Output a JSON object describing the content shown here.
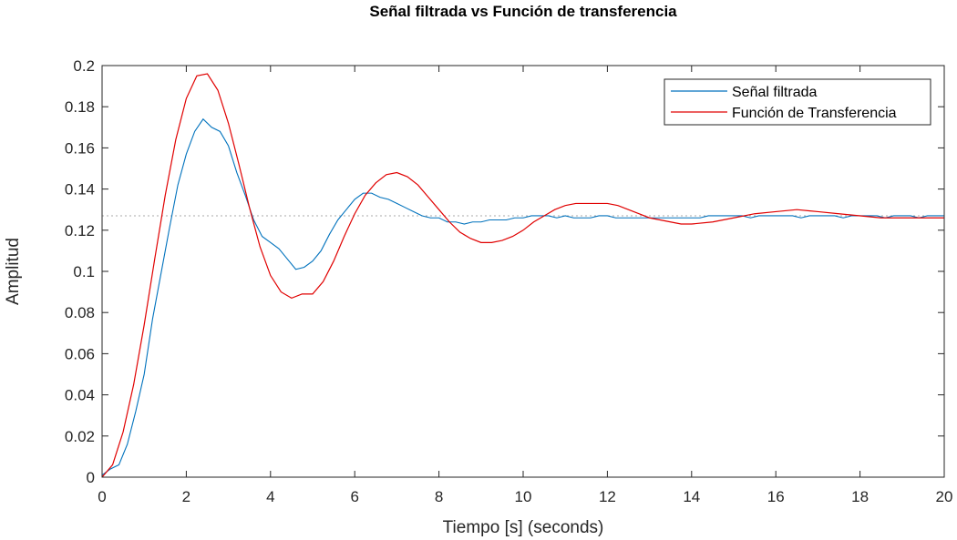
{
  "chart_data": {
    "type": "line",
    "title": "Señal filtrada vs Función de transferencia",
    "xlabel": "Tiempo [s] (seconds)",
    "ylabel": "Amplitud",
    "xlim": [
      0,
      20
    ],
    "ylim": [
      0,
      0.2
    ],
    "xticks": [
      "0",
      "2",
      "4",
      "6",
      "8",
      "10",
      "12",
      "14",
      "16",
      "18",
      "20"
    ],
    "yticks": [
      "0",
      "0.02",
      "0.04",
      "0.06",
      "0.08",
      "0.1",
      "0.12",
      "0.14",
      "0.16",
      "0.18",
      "0.2"
    ],
    "grid": false,
    "legend_position": "top-right",
    "reference_line": {
      "y": 0.127,
      "style": "dotted"
    },
    "series": [
      {
        "name": "Señal filtrada",
        "color": "#0072BD",
        "x": [
          0,
          0.2,
          0.4,
          0.6,
          0.8,
          1.0,
          1.2,
          1.4,
          1.6,
          1.8,
          2.0,
          2.2,
          2.4,
          2.6,
          2.8,
          3.0,
          3.2,
          3.4,
          3.6,
          3.8,
          4.0,
          4.2,
          4.4,
          4.6,
          4.8,
          5.0,
          5.2,
          5.4,
          5.6,
          5.8,
          6.0,
          6.2,
          6.4,
          6.6,
          6.8,
          7.0,
          7.2,
          7.4,
          7.6,
          7.8,
          8.0,
          8.2,
          8.4,
          8.6,
          8.8,
          9.0,
          9.2,
          9.4,
          9.6,
          9.8,
          10.0,
          10.2,
          10.4,
          10.6,
          10.8,
          11.0,
          11.2,
          11.4,
          11.6,
          11.8,
          12.0,
          12.2,
          12.4,
          12.6,
          12.8,
          13.0,
          13.2,
          13.4,
          13.6,
          13.8,
          14.0,
          14.2,
          14.4,
          14.6,
          14.8,
          15.0,
          15.2,
          15.4,
          15.6,
          15.8,
          16.0,
          16.2,
          16.4,
          16.6,
          16.8,
          17.0,
          17.2,
          17.4,
          17.6,
          17.8,
          18.0,
          18.2,
          18.4,
          18.6,
          18.8,
          19.0,
          19.2,
          19.4,
          19.6,
          19.8,
          20.0
        ],
        "y": [
          0.001,
          0.004,
          0.006,
          0.016,
          0.032,
          0.05,
          0.077,
          0.099,
          0.121,
          0.142,
          0.157,
          0.168,
          0.174,
          0.17,
          0.168,
          0.161,
          0.148,
          0.137,
          0.125,
          0.117,
          0.114,
          0.111,
          0.106,
          0.101,
          0.102,
          0.105,
          0.11,
          0.118,
          0.125,
          0.13,
          0.135,
          0.138,
          0.138,
          0.136,
          0.135,
          0.133,
          0.131,
          0.129,
          0.127,
          0.126,
          0.126,
          0.124,
          0.124,
          0.123,
          0.124,
          0.124,
          0.125,
          0.125,
          0.125,
          0.126,
          0.126,
          0.127,
          0.127,
          0.127,
          0.126,
          0.127,
          0.126,
          0.126,
          0.126,
          0.127,
          0.127,
          0.126,
          0.126,
          0.126,
          0.126,
          0.126,
          0.126,
          0.126,
          0.126,
          0.126,
          0.126,
          0.126,
          0.127,
          0.127,
          0.127,
          0.127,
          0.127,
          0.126,
          0.127,
          0.127,
          0.127,
          0.127,
          0.127,
          0.126,
          0.127,
          0.127,
          0.127,
          0.127,
          0.126,
          0.127,
          0.127,
          0.127,
          0.127,
          0.126,
          0.127,
          0.127,
          0.127,
          0.126,
          0.127,
          0.127,
          0.127
        ]
      },
      {
        "name": "Función de Transferencia",
        "color": "#E00000",
        "x": [
          0,
          0.25,
          0.5,
          0.75,
          1.0,
          1.25,
          1.5,
          1.75,
          2.0,
          2.25,
          2.5,
          2.75,
          3.0,
          3.25,
          3.5,
          3.75,
          4.0,
          4.25,
          4.5,
          4.75,
          5.0,
          5.25,
          5.5,
          5.75,
          6.0,
          6.25,
          6.5,
          6.75,
          7.0,
          7.25,
          7.5,
          7.75,
          8.0,
          8.25,
          8.5,
          8.75,
          9.0,
          9.25,
          9.5,
          9.75,
          10.0,
          10.25,
          10.5,
          10.75,
          11.0,
          11.25,
          11.5,
          11.75,
          12.0,
          12.25,
          12.5,
          12.75,
          13.0,
          13.25,
          13.5,
          13.75,
          14.0,
          14.5,
          15.0,
          15.5,
          16.0,
          16.5,
          17.0,
          17.5,
          18.0,
          18.5,
          19.0,
          19.5,
          20.0
        ],
        "y": [
          0,
          0.006,
          0.022,
          0.045,
          0.074,
          0.106,
          0.137,
          0.164,
          0.184,
          0.195,
          0.196,
          0.188,
          0.172,
          0.152,
          0.131,
          0.112,
          0.098,
          0.09,
          0.087,
          0.089,
          0.089,
          0.095,
          0.105,
          0.117,
          0.128,
          0.137,
          0.143,
          0.147,
          0.148,
          0.146,
          0.142,
          0.136,
          0.13,
          0.124,
          0.119,
          0.116,
          0.114,
          0.114,
          0.115,
          0.117,
          0.12,
          0.124,
          0.127,
          0.13,
          0.132,
          0.133,
          0.133,
          0.133,
          0.133,
          0.132,
          0.13,
          0.128,
          0.126,
          0.125,
          0.124,
          0.123,
          0.123,
          0.124,
          0.126,
          0.128,
          0.129,
          0.13,
          0.129,
          0.128,
          0.127,
          0.126,
          0.126,
          0.126,
          0.126
        ]
      }
    ]
  }
}
